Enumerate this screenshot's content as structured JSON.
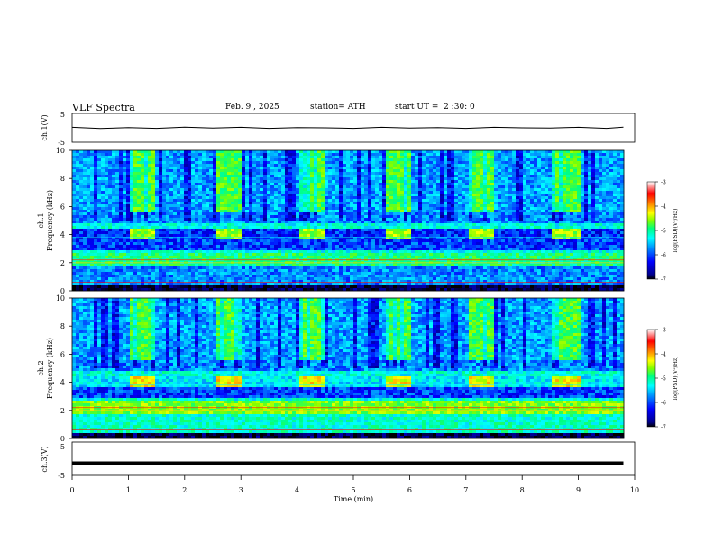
{
  "header": {
    "title": "VLF Spectra",
    "date": "Feb. 9 , 2025",
    "station": "station= ATH",
    "start_ut": "start UT =  2 :30: 0"
  },
  "chart_data": [
    {
      "type": "line",
      "panel": "ch1-waveform",
      "ylabel": "ch.1(V)",
      "ylim": [
        -5,
        5
      ],
      "yticks": [
        "5",
        "-5"
      ],
      "x": [
        0,
        0.5,
        1.0,
        1.5,
        2.0,
        2.5,
        3.0,
        3.5,
        4.0,
        4.5,
        5.0,
        5.5,
        6.0,
        6.5,
        7.0,
        7.5,
        8.0,
        8.5,
        9.0,
        9.5,
        9.8
      ],
      "values": [
        0.2,
        -0.3,
        0.1,
        -0.2,
        0.3,
        -0.1,
        0.2,
        -0.2,
        0.1,
        0.0,
        -0.2,
        0.2,
        -0.1,
        0.1,
        -0.2,
        0.2,
        0.0,
        -0.1,
        0.2,
        -0.2,
        0.3
      ]
    },
    {
      "type": "heatmap",
      "panel": "ch1-spectrogram",
      "ylabel": "ch.1\nFrequency  (kHz)",
      "ylim": [
        0,
        10
      ],
      "yticks": [
        "0",
        "2",
        "4",
        "6",
        "8",
        "10"
      ],
      "colorbar": {
        "label": "log(PSD)(V²/Hz)",
        "range": [
          -7,
          -3
        ],
        "ticks": [
          "-3",
          "-4",
          "-5",
          "-6",
          "-7"
        ]
      }
    },
    {
      "type": "heatmap",
      "panel": "ch2-spectrogram",
      "ylabel": "ch.2\nFrequency  (kHz)",
      "ylim": [
        0,
        10
      ],
      "yticks": [
        "0",
        "2",
        "4",
        "6",
        "8",
        "10"
      ],
      "colorbar": {
        "label": "log(PSD)(V²/Hz)",
        "range": [
          -7,
          -3
        ],
        "ticks": [
          "-3",
          "-4",
          "-5",
          "-6",
          "-7"
        ]
      }
    },
    {
      "type": "line",
      "panel": "ch3-waveform",
      "ylabel": "ch.3(V)",
      "ylim": [
        -5,
        5
      ],
      "yticks": [
        "5",
        "-5"
      ],
      "x": [
        0,
        9.8
      ],
      "values": [
        -1.5,
        -1.5
      ]
    }
  ],
  "xaxis": {
    "label": "Time  (min)",
    "xlim": [
      0,
      10
    ],
    "ticks": [
      "0",
      "1",
      "2",
      "3",
      "4",
      "5",
      "6",
      "7",
      "8",
      "9",
      "10"
    ]
  },
  "colors": {
    "scale": [
      "#000000",
      "#00008f",
      "#0000ff",
      "#0090ff",
      "#00ffff",
      "#00ff7f",
      "#80ff00",
      "#ffff00",
      "#ff8000",
      "#ff0000",
      "#ffffff"
    ]
  }
}
